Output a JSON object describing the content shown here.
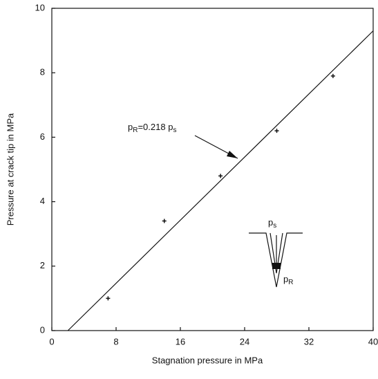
{
  "chart_data": {
    "type": "scatter",
    "x_label": "Stagnation pressure in MPa",
    "y_label": "Pressure at crack tip in MPa",
    "x": [
      7,
      14,
      21,
      28,
      35
    ],
    "values": [
      1.0,
      3.4,
      4.8,
      6.2,
      7.9
    ],
    "color": "#111111",
    "fit_line": {
      "x": [
        2,
        40
      ],
      "values": [
        0,
        9.3
      ]
    },
    "xlim": [
      0,
      40
    ],
    "ylim": [
      0,
      10
    ],
    "xticks": [
      0,
      8,
      16,
      24,
      32,
      40
    ],
    "yticks": [
      0,
      2,
      4,
      6,
      8,
      10
    ],
    "annotation": [
      "p",
      "R",
      "=0.218 p",
      "s"
    ],
    "inset_top_label": [
      "p",
      "s"
    ],
    "inset_bottom_label": [
      "p",
      "R"
    ]
  }
}
